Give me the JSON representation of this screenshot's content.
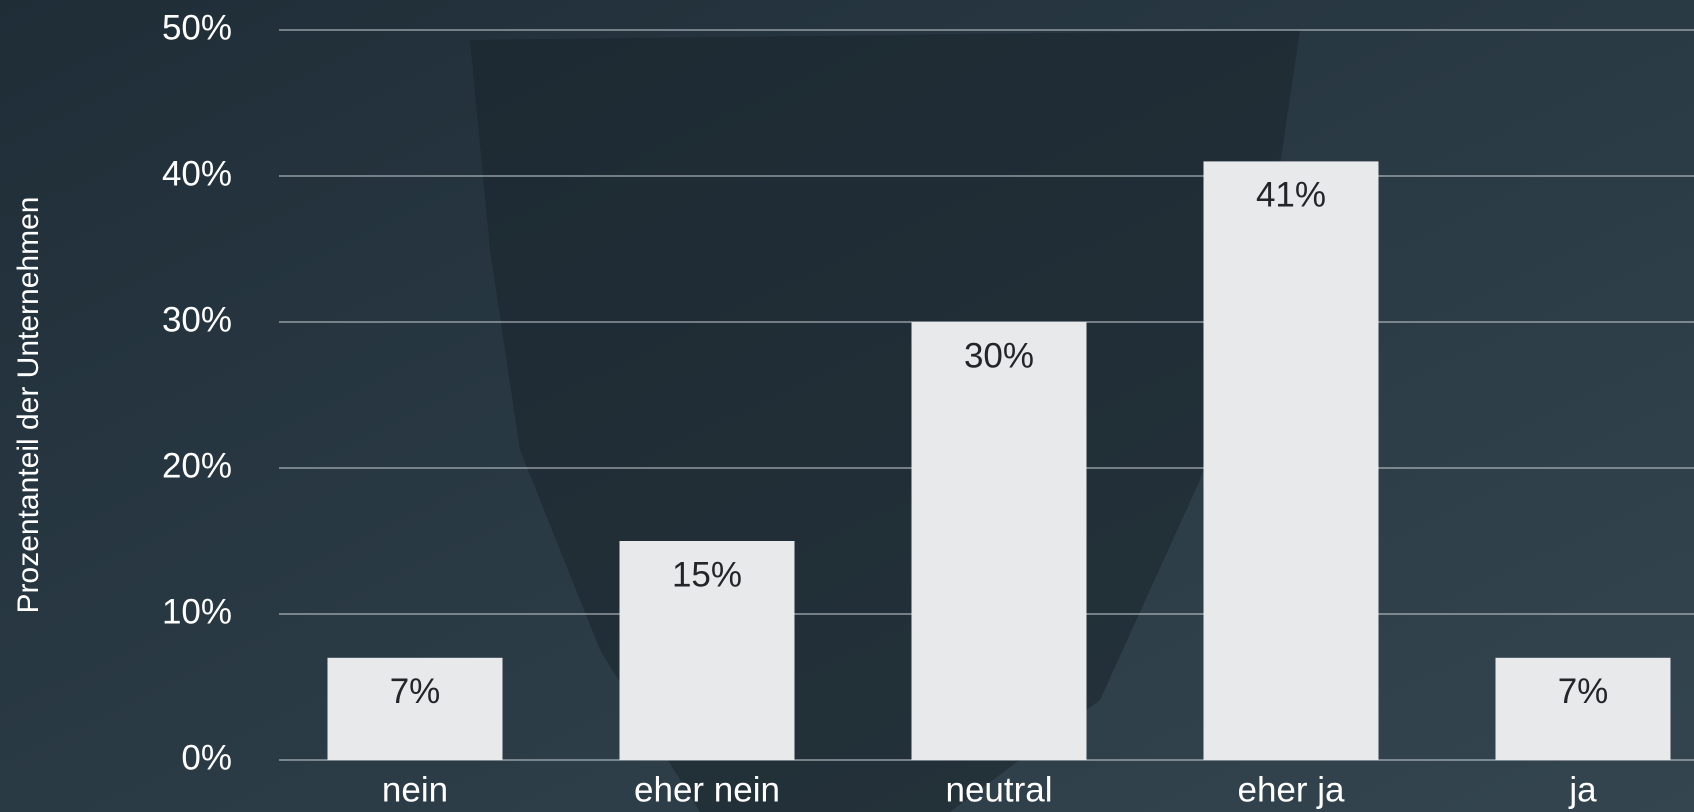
{
  "chart_data": {
    "type": "bar",
    "y_label": "Prozentanteil der Unternehmen",
    "categories": [
      "nein",
      "eher nein",
      "neutral",
      "eher ja",
      "ja"
    ],
    "values": [
      7,
      15,
      30,
      41,
      7
    ],
    "value_labels": [
      "7%",
      "15%",
      "30%",
      "41%",
      "7%"
    ],
    "color": "#e8e9eb",
    "ylim": [
      0,
      50
    ],
    "yticks": [
      {
        "value": 0,
        "label": "0%"
      },
      {
        "value": 10,
        "label": "10%"
      },
      {
        "value": 20,
        "label": "20%"
      },
      {
        "value": 30,
        "label": "30%"
      },
      {
        "value": 40,
        "label": "40%"
      },
      {
        "value": 50,
        "label": "50%"
      }
    ],
    "grid": true
  }
}
